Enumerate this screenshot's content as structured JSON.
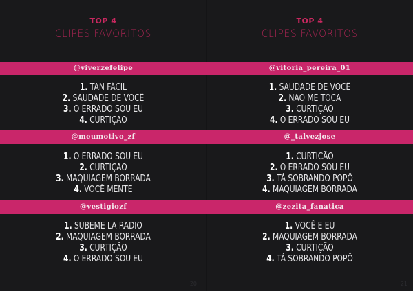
{
  "pages": [
    {
      "title_top": "TOP 4",
      "title_main": "CLIPES FAVORITOS",
      "page_number": "20",
      "sections": [
        {
          "user": "@viverzefelipe",
          "items": [
            "TAN FÁCIL",
            "SAUDADE DE VOCÊ",
            "O ERRADO SOU EU",
            "CURTIÇÃO"
          ]
        },
        {
          "user": "@meumotivo_zf",
          "items": [
            "O ERRADO SOU EU",
            "CURTIÇAO",
            "MAQUIAGEM BORRADA",
            "VOCÊ MENTE"
          ]
        },
        {
          "user": "@vestigiozf",
          "items": [
            "SUBEME LA RADIO",
            "MAQUIAGEM BORRADA",
            "CURTIÇÃO",
            "O ERRADO SOU EU"
          ]
        }
      ]
    },
    {
      "title_top": "TOP 4",
      "title_main": "CLIPES FAVORITOS",
      "page_number": "21",
      "sections": [
        {
          "user": "@vitoria_pereira_01",
          "items": [
            "SAUDADE DE VOCÊ",
            "NÃO ME TOCA",
            "CURTIÇÃO",
            "O ERRADO SOU EU"
          ]
        },
        {
          "user": "@_talvezjose",
          "items": [
            "CURTIÇÃO",
            "O ERRADO SOU EU",
            "TÁ SOBRANDO POPÔ",
            "MAQUIAGEM BORRADA"
          ]
        },
        {
          "user": "@zezita_fanatica",
          "items": [
            "VOCÊ E EU",
            "MAQUIAGEM BORRADA",
            "CURTIÇÃO",
            "TÁ SOBRANDO POPÔ"
          ]
        }
      ]
    }
  ],
  "numbers": [
    "1.",
    "2.",
    "3.",
    "4."
  ],
  "colors": {
    "accent": "#c9266a",
    "background": "#19191b"
  }
}
